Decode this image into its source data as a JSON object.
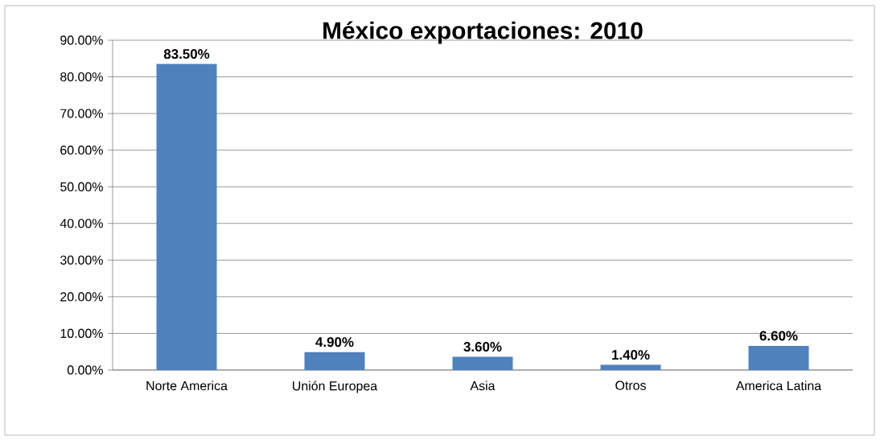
{
  "chart_data": {
    "type": "bar",
    "title": "México exportaciones: 2010",
    "categories": [
      "Norte America",
      "Unión Europea",
      "Asia",
      "Otros",
      "America Latina"
    ],
    "values": [
      83.5,
      4.9,
      3.6,
      1.4,
      6.6
    ],
    "value_labels": [
      "83.50%",
      "4.90%",
      "3.60%",
      "1.40%",
      "6.60%"
    ],
    "color": "#4f81bd",
    "ylim": [
      0,
      90
    ],
    "yticks": [
      {
        "value": 0,
        "label": "0.00%"
      },
      {
        "value": 10,
        "label": "10.00%"
      },
      {
        "value": 20,
        "label": "20.00%"
      },
      {
        "value": 30,
        "label": "30.00%"
      },
      {
        "value": 40,
        "label": "40.00%"
      },
      {
        "value": 50,
        "label": "50.00%"
      },
      {
        "value": 60,
        "label": "60.00%"
      },
      {
        "value": 70,
        "label": "70.00%"
      },
      {
        "value": 80,
        "label": "80.00%"
      },
      {
        "value": 90,
        "label": "90.00%"
      }
    ],
    "grid": "y"
  }
}
